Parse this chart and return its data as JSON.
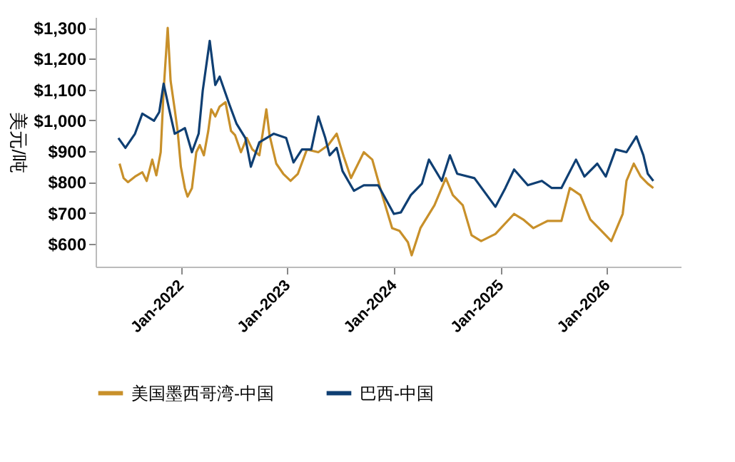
{
  "chart_data": {
    "type": "line",
    "ylabel": "美元/吨",
    "legend": "bottom",
    "grid": false,
    "xlim": [
      "2021-03-15",
      "2026-09-10"
    ],
    "xticks": [
      {
        "value": "2022-01-01",
        "label": "Jan-2022"
      },
      {
        "value": "2023-01-01",
        "label": "Jan-2023"
      },
      {
        "value": "2024-01-01",
        "label": "Jan-2024"
      },
      {
        "value": "2025-01-01",
        "label": "Jan-2025"
      },
      {
        "value": "2026-01-01",
        "label": "Jan-2026"
      }
    ],
    "ylim": [
      526,
      1335
    ],
    "yticks": [
      {
        "value": 600,
        "label": "$600"
      },
      {
        "value": 700,
        "label": "$700"
      },
      {
        "value": 800,
        "label": "$800"
      },
      {
        "value": 900,
        "label": "$900"
      },
      {
        "value": 1000,
        "label": "$1,000"
      },
      {
        "value": 1100,
        "label": "$1,100"
      },
      {
        "value": 1200,
        "label": "$1,200"
      },
      {
        "value": 1300,
        "label": "$1,300"
      }
    ],
    "series": [
      {
        "name": "美国墨西哥湾-中国",
        "color": "#c8902a",
        "x": [
          "2021-06-05",
          "2021-06-19",
          "2021-07-04",
          "2021-07-28",
          "2021-08-22",
          "2021-09-06",
          "2021-09-25",
          "2021-10-09",
          "2021-10-24",
          "2021-11-03",
          "2021-11-17",
          "2021-11-27",
          "2021-12-11",
          "2021-12-21",
          "2022-01-01",
          "2022-01-15",
          "2022-01-24",
          "2022-02-08",
          "2022-02-23",
          "2022-03-07",
          "2022-03-21",
          "2022-04-05",
          "2022-04-15",
          "2022-04-29",
          "2022-05-14",
          "2022-06-03",
          "2022-06-22",
          "2022-07-06",
          "2022-07-26",
          "2022-08-15",
          "2022-09-03",
          "2022-09-27",
          "2022-10-21",
          "2022-11-01",
          "2022-11-24",
          "2022-12-18",
          "2023-01-12",
          "2023-02-06",
          "2023-03-09",
          "2023-04-17",
          "2023-05-21",
          "2023-06-19",
          "2023-07-13",
          "2023-08-07",
          "2023-09-20",
          "2023-10-19",
          "2023-11-22",
          "2023-12-26",
          "2024-01-20",
          "2024-02-18",
          "2024-03-02",
          "2024-04-01",
          "2024-05-19",
          "2024-06-27",
          "2024-07-21",
          "2024-08-24",
          "2024-09-23",
          "2024-10-26",
          "2024-12-14",
          "2025-02-16",
          "2025-03-19",
          "2025-04-23",
          "2025-06-10",
          "2025-07-28",
          "2025-08-26",
          "2025-10-01",
          "2025-11-04",
          "2025-12-03",
          "2026-01-15",
          "2026-02-23",
          "2026-03-08",
          "2026-04-02",
          "2026-04-26",
          "2026-05-20",
          "2026-06-08"
        ],
        "values": [
          860,
          813,
          800,
          818,
          832,
          804,
          873,
          822,
          897,
          1096,
          1300,
          1128,
          1036,
          966,
          850,
          780,
          753,
          780,
          897,
          920,
          887,
          966,
          1036,
          1013,
          1045,
          1059,
          966,
          952,
          897,
          943,
          906,
          887,
          1036,
          952,
          860,
          827,
          804,
          827,
          906,
          897,
          920,
          957,
          883,
          813,
          897,
          873,
          758,
          651,
          642,
          605,
          563,
          651,
          725,
          813,
          758,
          725,
          628,
          609,
          632,
          697,
          679,
          651,
          674,
          674,
          781,
          758,
          679,
          651,
          609,
          697,
          804,
          860,
          818,
          795,
          781
        ]
      },
      {
        "name": "巴西-中国",
        "color": "#0f3f73",
        "x": [
          "2021-06-01",
          "2021-06-25",
          "2021-07-28",
          "2021-08-22",
          "2021-10-01",
          "2021-10-19",
          "2021-11-03",
          "2021-11-22",
          "2021-12-11",
          "2022-01-15",
          "2022-02-08",
          "2022-03-03",
          "2022-03-17",
          "2022-04-10",
          "2022-04-29",
          "2022-05-14",
          "2022-06-17",
          "2022-07-11",
          "2022-08-10",
          "2022-08-29",
          "2022-09-27",
          "2022-11-15",
          "2022-12-28",
          "2023-01-22",
          "2023-02-20",
          "2023-03-24",
          "2023-04-17",
          "2023-05-11",
          "2023-05-26",
          "2023-06-19",
          "2023-07-09",
          "2023-08-17",
          "2023-09-20",
          "2023-11-08",
          "2024-01-01",
          "2024-01-25",
          "2024-02-28",
          "2024-04-06",
          "2024-04-30",
          "2024-06-13",
          "2024-07-11",
          "2024-08-05",
          "2024-10-03",
          "2024-12-14",
          "2025-01-17",
          "2025-02-16",
          "2025-04-04",
          "2025-05-22",
          "2025-06-25",
          "2025-07-28",
          "2025-09-16",
          "2025-10-15",
          "2025-11-28",
          "2025-12-27",
          "2026-01-30",
          "2026-03-08",
          "2026-04-11",
          "2026-05-05",
          "2026-05-20",
          "2026-06-08"
        ],
        "values": [
          943,
          911,
          957,
          1022,
          999,
          1027,
          1119,
          1036,
          957,
          975,
          897,
          957,
          1096,
          1258,
          1115,
          1142,
          1050,
          989,
          943,
          850,
          929,
          957,
          943,
          864,
          906,
          906,
          1013,
          943,
          887,
          911,
          836,
          772,
          790,
          790,
          697,
          702,
          758,
          795,
          873,
          804,
          887,
          827,
          813,
          720,
          781,
          841,
          790,
          804,
          781,
          781,
          873,
          818,
          860,
          818,
          906,
          897,
          948,
          887,
          827,
          804
        ]
      }
    ]
  }
}
